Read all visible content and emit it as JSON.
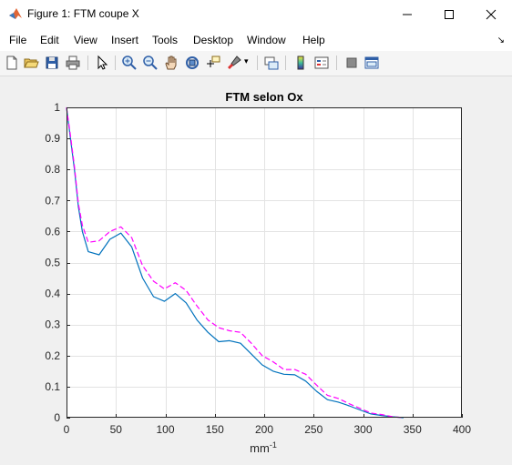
{
  "window": {
    "title": "Figure 1: FTM coupe X"
  },
  "menu": [
    "File",
    "Edit",
    "View",
    "Insert",
    "Tools",
    "Desktop",
    "Window",
    "Help"
  ],
  "toolbar_icons": [
    "new-figure-icon",
    "open-file-icon",
    "save-icon",
    "print-icon",
    "select-arrow-icon",
    "zoom-in-icon",
    "zoom-out-icon",
    "pan-hand-icon",
    "rotate-3d-icon",
    "data-cursor-icon",
    "brush-icon",
    "link-plot-icon",
    "colorbar-icon",
    "legend-icon",
    "hide-plot-tools-icon",
    "show-plot-tools-icon"
  ],
  "chart_data": {
    "type": "line",
    "title": "FTM selon Ox",
    "xlabel": "mm",
    "xlabel_exponent": "-1",
    "xlim": [
      0,
      400
    ],
    "ylim": [
      0,
      1
    ],
    "xticks": [
      0,
      50,
      100,
      150,
      200,
      250,
      300,
      350,
      400
    ],
    "yticks": [
      0,
      0.1,
      0.2,
      0.3,
      0.4,
      0.5,
      0.6,
      0.7,
      0.8,
      0.9,
      1
    ],
    "grid": true,
    "series": [
      {
        "color": "#0072bd",
        "style": "solid",
        "x": [
          0,
          4,
          8,
          12,
          16,
          22,
          33,
          44,
          55,
          66,
          77,
          88,
          99,
          110,
          121,
          132,
          143,
          154,
          165,
          176,
          187,
          198,
          209,
          220,
          231,
          242,
          253,
          264,
          275,
          286,
          297,
          308,
          319,
          330,
          341
        ],
        "y": [
          1.0,
          0.9,
          0.8,
          0.68,
          0.6,
          0.535,
          0.525,
          0.575,
          0.595,
          0.55,
          0.45,
          0.39,
          0.375,
          0.4,
          0.37,
          0.315,
          0.275,
          0.245,
          0.248,
          0.24,
          0.205,
          0.17,
          0.15,
          0.14,
          0.138,
          0.118,
          0.085,
          0.058,
          0.05,
          0.038,
          0.025,
          0.012,
          0.007,
          0.003,
          0.0
        ]
      },
      {
        "color": "#ff00ff",
        "style": "dashed",
        "x": [
          0,
          4,
          8,
          12,
          16,
          22,
          33,
          44,
          55,
          66,
          77,
          88,
          99,
          110,
          121,
          132,
          143,
          154,
          165,
          176,
          187,
          198,
          209,
          220,
          231,
          242,
          253,
          264,
          275,
          286,
          297,
          308,
          319,
          330,
          341
        ],
        "y": [
          1.0,
          0.91,
          0.81,
          0.69,
          0.62,
          0.565,
          0.57,
          0.6,
          0.615,
          0.58,
          0.49,
          0.44,
          0.415,
          0.435,
          0.41,
          0.36,
          0.315,
          0.29,
          0.28,
          0.275,
          0.24,
          0.2,
          0.18,
          0.155,
          0.155,
          0.14,
          0.105,
          0.072,
          0.062,
          0.045,
          0.03,
          0.015,
          0.01,
          0.003,
          0.0
        ]
      }
    ]
  }
}
